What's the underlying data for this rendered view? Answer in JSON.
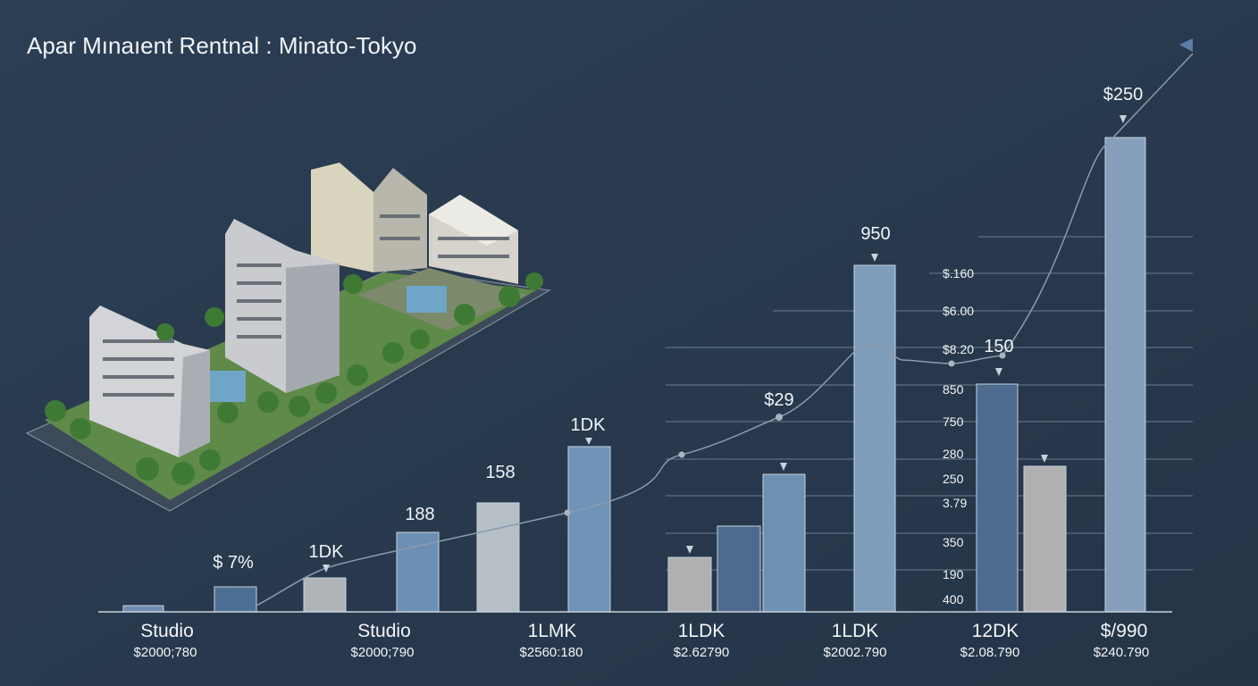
{
  "header": {
    "title": "Apar Mınaıent Rentnal : Minato-Tokyo"
  },
  "bar_labels": [
    "$ 7%",
    "1DK",
    "188",
    "158",
    "1DK",
    "$29",
    "950",
    "150",
    "$250"
  ],
  "axis_labels": [
    "$.160",
    "$6.00",
    "$8.20",
    "850",
    "750",
    "280",
    "250",
    "3.79",
    "350",
    "190",
    "400"
  ],
  "categories": [
    {
      "name": "Studio",
      "price": "$2000;780"
    },
    {
      "name": "Studio",
      "price": "$2000;790"
    },
    {
      "name": "1LMK",
      "price": "$2560:180"
    },
    {
      "name": "1LDK",
      "price": "$2.62790"
    },
    {
      "name": "1LDK",
      "price": "$2002.790"
    },
    {
      "name": "12DK",
      "price": "$2.08.790"
    },
    {
      "name": "$/990",
      "price": "$240.790"
    }
  ]
}
